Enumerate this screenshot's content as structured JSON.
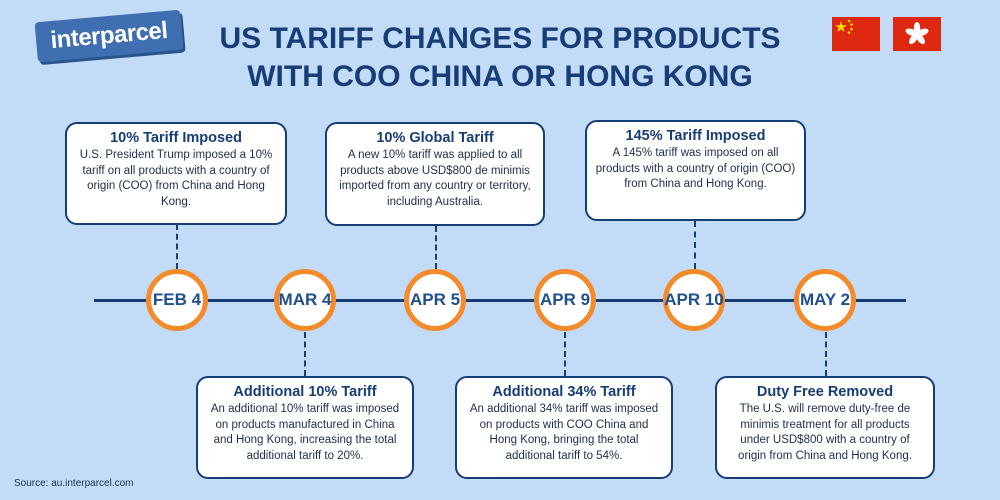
{
  "logo": {
    "text": "interparcel"
  },
  "title": {
    "line1": "US TARIFF CHANGES FOR PRODUCTS",
    "line2": "WITH COO CHINA OR HONG KONG"
  },
  "flags": [
    {
      "name": "china-flag",
      "colors": {
        "field": "#de2910",
        "stars": "#ffde00"
      }
    },
    {
      "name": "hong-kong-flag",
      "colors": {
        "field": "#de2910",
        "flower": "#ffffff"
      }
    }
  ],
  "timeline": {
    "colors": {
      "axis": "#163d75",
      "ring": "#f58a2b",
      "date_text": "#1f4f8c"
    },
    "dates": [
      "FEB 4",
      "MAR 4",
      "APR 5",
      "APR 9",
      "APR 10",
      "MAY 2"
    ],
    "events": [
      {
        "date": "FEB 4",
        "title": "10% Tariff Imposed",
        "body": "U.S. President Trump imposed a 10% tariff on all products with a country of origin (COO) from China and Hong Kong."
      },
      {
        "date": "MAR 4",
        "title": "Additional 10% Tariff",
        "body": "An additional 10% tariff was imposed on products manufactured in China and Hong Kong, increasing the total additional tariff to 20%."
      },
      {
        "date": "APR 5",
        "title": "10% Global Tariff",
        "body": "A new 10% tariff was applied to all products above USD$800 de minimis imported from any country or territory, including Australia."
      },
      {
        "date": "APR 9",
        "title": "Additional 34% Tariff",
        "body": "An additional 34% tariff was imposed on products with COO China and Hong Kong, bringing the total additional tariff to 54%."
      },
      {
        "date": "APR 10",
        "title": "145% Tariff Imposed",
        "body": "A 145% tariff was imposed on all products with a country of origin (COO) from China and Hong Kong."
      },
      {
        "date": "MAY 2",
        "title": "Duty Free Removed",
        "body": "The U.S. will remove duty-free de minimis treatment for all products under USD$800 with a country of origin from China and Hong Kong."
      }
    ]
  },
  "source": "Source: au.interparcel.com"
}
